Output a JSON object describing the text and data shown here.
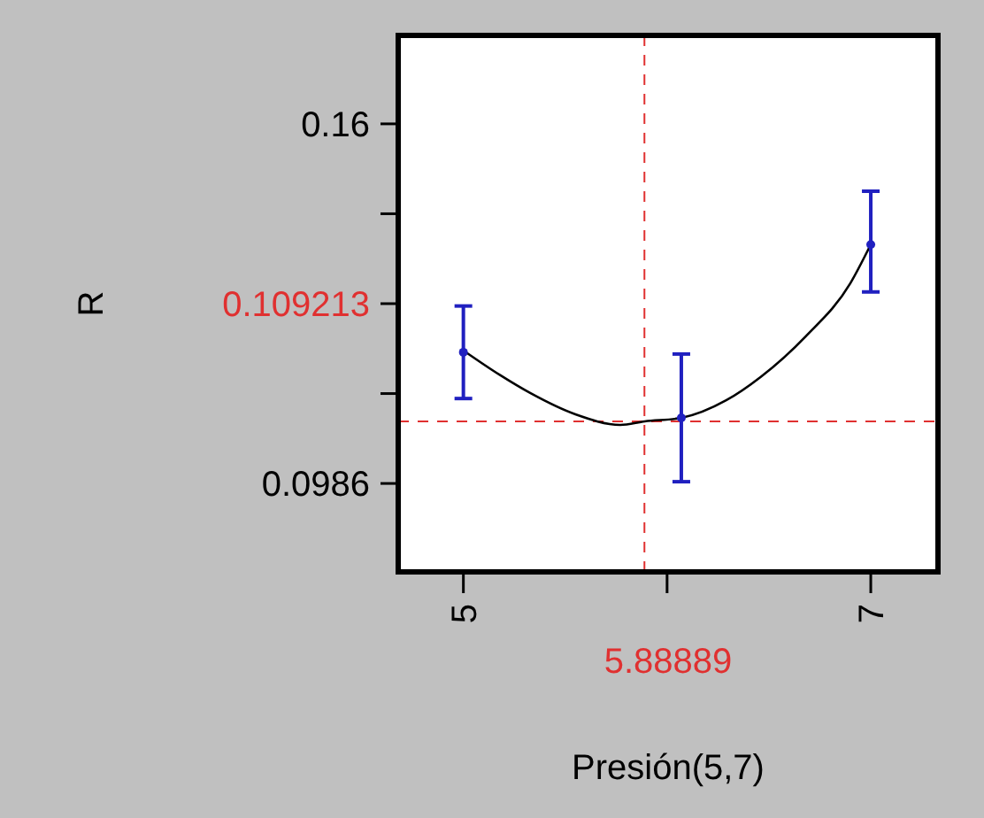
{
  "chart_data": {
    "type": "line",
    "xlabel": "Presión(5,7)",
    "ylabel": "R",
    "xlim": [
      4.68,
      7.33
    ],
    "xticks": [
      5,
      {
        "value": 6,
        "label": null
      },
      7
    ],
    "ylim": [
      0.0835,
      0.1751
    ],
    "yticks": [
      0.0986,
      {
        "value": 0.11395,
        "label": null
      },
      {
        "value": 0.1293,
        "label": null
      },
      {
        "value": 0.14465,
        "label": null
      },
      0.16
    ],
    "series": [
      {
        "color": "#000000",
        "x": [
          5,
          5.18,
          5.33,
          5.55,
          5.77,
          5.89,
          6.07,
          6.29,
          6.46,
          6.68,
          6.9,
          7
        ],
        "values": [
          0.1213,
          0.1171,
          0.114,
          0.1104,
          0.1086,
          0.1092,
          0.1098,
          0.1128,
          0.1168,
          0.1237,
          0.1328,
          0.1394
        ]
      },
      {
        "type": "scatter",
        "color": "#2020c0",
        "marker": "circle",
        "x": [
          5,
          6.07,
          7
        ],
        "values": [
          0.121,
          0.1098,
          0.1394
        ],
        "errors": [
          [
            0.1131,
            0.1289
          ],
          [
            0.0989,
            0.1207
          ],
          [
            0.1313,
            0.1485
          ]
        ]
      }
    ],
    "ref_lines": [
      {
        "axis": "x",
        "value": 5.88889,
        "label": "5.88889",
        "color": "#e03030",
        "line_style": "dashed"
      },
      {
        "axis": "y",
        "value": 0.109213,
        "label": "0.109213",
        "color": "#e03030",
        "line_style": "dashed"
      }
    ],
    "grid": false
  }
}
